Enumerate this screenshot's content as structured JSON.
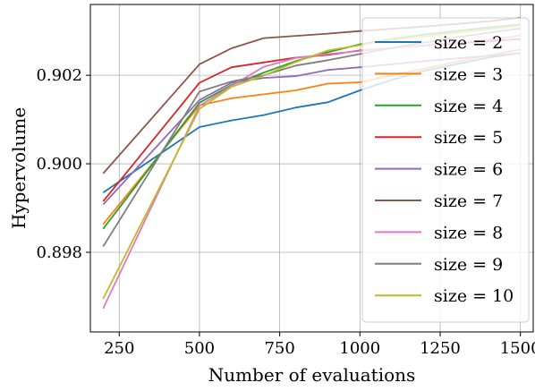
{
  "chart_data": {
    "type": "line",
    "title": "",
    "xlabel": "Number of evaluations",
    "ylabel": "Hypervolume",
    "xlim": [
      160,
      1540
    ],
    "ylim": [
      0.8962,
      0.9036
    ],
    "xticks": [
      250,
      500,
      750,
      1000,
      1250,
      1500
    ],
    "xtick_labels": [
      "250",
      "500",
      "750",
      "1000",
      "1250",
      "1500"
    ],
    "yticks": [
      0.898,
      0.9,
      0.902
    ],
    "ytick_labels": [
      "0.898",
      "0.900",
      "0.902"
    ],
    "grid": true,
    "legend_position": "upper-right",
    "x": [
      200,
      500,
      600,
      700,
      800,
      900,
      1000,
      1100,
      1200,
      1300,
      1400,
      1500
    ],
    "series": [
      {
        "name": "size = 2",
        "color": "#1f77b4",
        "values": [
          0.89935,
          0.90083,
          0.90098,
          0.9011,
          0.90127,
          0.90139,
          0.90166,
          0.9019,
          0.9021,
          0.90225,
          0.9024,
          0.9025
        ]
      },
      {
        "name": "size = 3",
        "color": "#ff7f0e",
        "values": [
          0.89863,
          0.90132,
          0.90148,
          0.90157,
          0.90166,
          0.90181,
          0.90184,
          0.902,
          0.90215,
          0.9023,
          0.90245,
          0.90258
        ]
      },
      {
        "name": "size = 4",
        "color": "#2ca02c",
        "values": [
          0.89853,
          0.90138,
          0.90178,
          0.90206,
          0.90232,
          0.90252,
          0.9027,
          0.90282,
          0.90292,
          0.903,
          0.90308,
          0.90315
        ]
      },
      {
        "name": "size = 5",
        "color": "#d62728",
        "values": [
          0.89915,
          0.90183,
          0.90218,
          0.90229,
          0.9024,
          0.90246,
          0.90256,
          0.90262,
          0.90267,
          0.90272,
          0.90277,
          0.90282
        ]
      },
      {
        "name": "size = 6",
        "color": "#9467bd",
        "values": [
          0.89908,
          0.90144,
          0.90183,
          0.90194,
          0.90198,
          0.90212,
          0.90218,
          0.90225,
          0.90232,
          0.90238,
          0.90244,
          0.9025
        ]
      },
      {
        "name": "size = 7",
        "color": "#8c564b",
        "values": [
          0.89978,
          0.90225,
          0.90261,
          0.90284,
          0.90289,
          0.90294,
          0.903,
          0.90305,
          0.9031,
          0.90316,
          0.90322,
          0.9033
        ]
      },
      {
        "name": "size = 8",
        "color": "#e377c2",
        "values": [
          0.89673,
          0.90131,
          0.90176,
          0.90219,
          0.90239,
          0.90248,
          0.90255,
          0.90262,
          0.90268,
          0.90274,
          0.9028,
          0.9029
        ]
      },
      {
        "name": "size = 9",
        "color": "#7f7f7f",
        "values": [
          0.89813,
          0.90163,
          0.90186,
          0.902,
          0.90222,
          0.90234,
          0.90248,
          0.90262,
          0.90274,
          0.90286,
          0.90296,
          0.90306
        ]
      },
      {
        "name": "size = 10",
        "color": "#bcbd22",
        "values": [
          0.89695,
          0.90124,
          0.90174,
          0.90199,
          0.9023,
          0.90256,
          0.90268,
          0.9028,
          0.90288,
          0.90296,
          0.90304,
          0.90312
        ]
      }
    ]
  }
}
